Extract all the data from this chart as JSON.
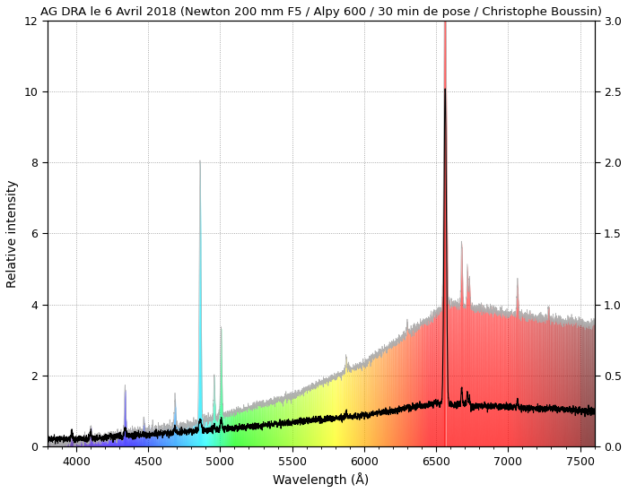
{
  "title": "AG DRA le 6 Avril 2018 (Newton 200 mm F5 / Alpy 600 / 30 min de pose / Christophe Boussin)",
  "xlabel": "Wavelength (Å)",
  "ylabel": "Relative intensity",
  "xlim": [
    3800,
    7600
  ],
  "ylim_left": [
    0,
    12
  ],
  "ylim_right": [
    0,
    3
  ],
  "xticks": [
    4000,
    4500,
    5000,
    5500,
    6000,
    6500,
    7000,
    7500
  ],
  "yticks_left": [
    0,
    2,
    4,
    6,
    8,
    10,
    12
  ],
  "yticks_right": [
    0,
    0.5,
    1.0,
    1.5,
    2.0,
    2.5,
    3.0
  ],
  "background_color": "#ffffff",
  "grid_color": "#888888",
  "title_fontsize": 9.5
}
